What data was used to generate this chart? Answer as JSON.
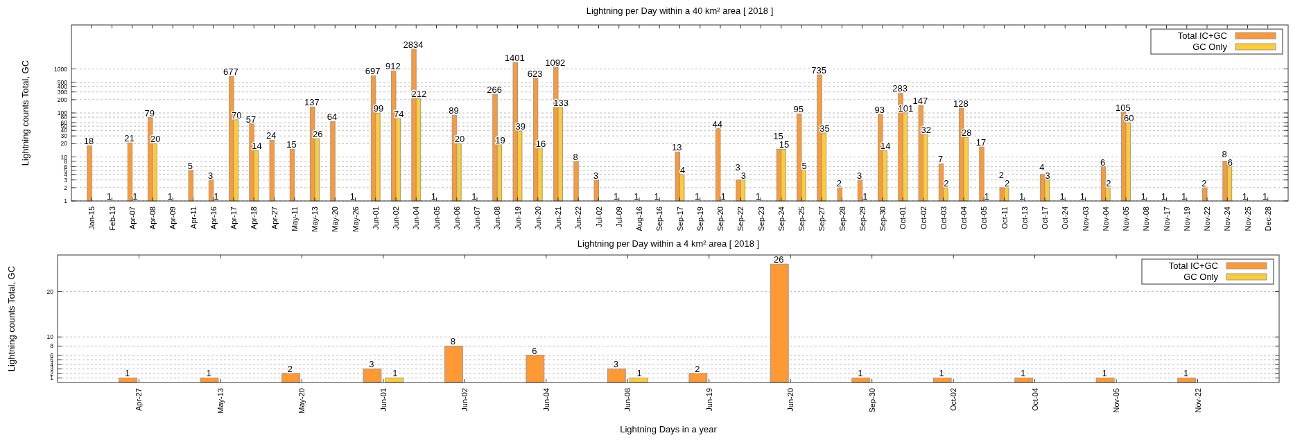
{
  "chart_data": [
    {
      "type": "bar",
      "title": "Lightning per Day within a 40 km² area [ 2018 ]",
      "ylabel": "Lightning counts Total, GC",
      "categories": [
        "Jan-15",
        "Feb-13",
        "Apr-07",
        "Apr-08",
        "Apr-09",
        "Apr-11",
        "Apr-16",
        "Apr-17",
        "Apr-18",
        "Apr-27",
        "May-11",
        "May-13",
        "May-20",
        "May-26",
        "Jun-01",
        "Jun-02",
        "Jun-04",
        "Jun-05",
        "Jun-06",
        "Jun-07",
        "Jun-08",
        "Jun-19",
        "Jun-20",
        "Jun-21",
        "Jun-22",
        "Jul-02",
        "Jul-09",
        "Aug-16",
        "Sep-16",
        "Sep-17",
        "Sep-19",
        "Sep-20",
        "Sep-22",
        "Sep-23",
        "Sep-24",
        "Sep-25",
        "Sep-27",
        "Sep-28",
        "Sep-29",
        "Sep-30",
        "Oct-01",
        "Oct-02",
        "Oct-03",
        "Oct-04",
        "Oct-05",
        "Oct-11",
        "Oct-13",
        "Oct-17",
        "Oct-24",
        "Nov-03",
        "Nov-04",
        "Nov-05",
        "Nov-08",
        "Nov-17",
        "Nov-19",
        "Nov-22",
        "Nov-24",
        "Nov-25",
        "Dec-28"
      ],
      "series": [
        {
          "name": "Total IC+GC",
          "color": "#ff9933",
          "values": [
            18,
            1,
            21,
            79,
            1,
            5,
            3,
            677,
            57,
            24,
            15,
            137,
            64,
            1,
            697,
            912,
            2834,
            1,
            89,
            1,
            266,
            1401,
            623,
            1092,
            8,
            3,
            1,
            1,
            1,
            13,
            1,
            44,
            3,
            1,
            15,
            95,
            735,
            2,
            3,
            93,
            283,
            147,
            7,
            128,
            17,
            2,
            1,
            4,
            1,
            1,
            6,
            105,
            1,
            1,
            1,
            2,
            8,
            1,
            1
          ]
        },
        {
          "name": "GC Only",
          "color": "#ffcc33",
          "values": [
            null,
            null,
            1,
            20,
            null,
            null,
            1,
            70,
            14,
            null,
            null,
            26,
            null,
            null,
            99,
            74,
            212,
            null,
            20,
            null,
            19,
            39,
            16,
            133,
            null,
            null,
            null,
            null,
            null,
            4,
            null,
            1,
            3,
            null,
            15,
            5,
            35,
            null,
            1,
            14,
            101,
            32,
            2,
            28,
            1,
            2,
            null,
            3,
            null,
            null,
            2,
            60,
            null,
            null,
            null,
            null,
            6,
            null,
            null
          ]
        }
      ],
      "log": "y",
      "ylim": [
        1,
        10000
      ],
      "yticks": [
        1,
        2,
        3,
        4,
        5,
        6,
        8,
        10,
        20,
        30,
        40,
        50,
        60,
        80,
        100,
        200,
        300,
        400,
        500,
        1000
      ],
      "grid": "y",
      "legend": "top right",
      "data_labels": true
    },
    {
      "type": "bar",
      "title": "Lightning per Day within a 4 km² area [ 2018 ]",
      "ylabel": "Lightning counts Total, GC",
      "xlabel": "Lightning Days in a year",
      "categories": [
        "Apr-27",
        "May-13",
        "May-20",
        "Jun-01",
        "Jun-02",
        "Jun-04",
        "Jun-08",
        "Jun-19",
        "Jun-20",
        "Sep-30",
        "Oct-02",
        "Oct-04",
        "Nov-05",
        "Nov-22"
      ],
      "series": [
        {
          "name": "Total IC+GC",
          "color": "#ff9933",
          "values": [
            1,
            1,
            2,
            3,
            8,
            6,
            3,
            2,
            26,
            1,
            1,
            1,
            1,
            1
          ]
        },
        {
          "name": "GC Only",
          "color": "#ffcc33",
          "values": [
            null,
            null,
            null,
            1,
            null,
            null,
            1,
            null,
            null,
            null,
            null,
            null,
            null,
            null
          ]
        }
      ],
      "ylim": [
        0,
        28
      ],
      "yticks": [
        1,
        2,
        3,
        4,
        5,
        6,
        8,
        10,
        20
      ],
      "grid": "y",
      "legend": "top right",
      "data_labels": true
    }
  ]
}
